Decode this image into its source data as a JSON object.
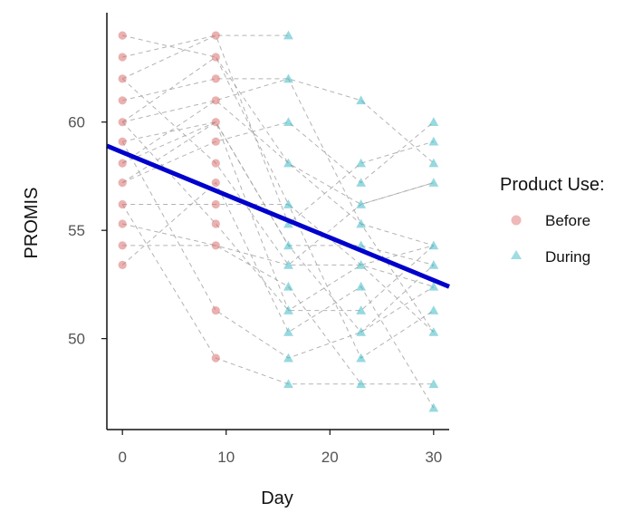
{
  "chart_data": {
    "type": "scatter",
    "title": "",
    "xlabel": "Day",
    "ylabel": "PROMIS",
    "xlim": [
      -1.5,
      31.5
    ],
    "ylim": [
      45.8,
      64.8
    ],
    "xticks": [
      0,
      10,
      20,
      30
    ],
    "yticks": [
      50,
      55,
      60
    ],
    "legend": {
      "title": "Product Use:",
      "position": "right",
      "entries": [
        {
          "label": "Before",
          "shape": "circle",
          "color": "#e48a8a"
        },
        {
          "label": "During",
          "shape": "triangle",
          "color": "#5ec7cf"
        }
      ]
    },
    "colors": {
      "before": "#d9716f",
      "during": "#3fbac4",
      "trend": "#0000cc",
      "connector": "#9a9a9a",
      "axis": "#111111"
    },
    "series": [
      {
        "name": "Before",
        "points": [
          {
            "x": 0,
            "y": 64.0
          },
          {
            "x": 0,
            "y": 63.0
          },
          {
            "x": 0,
            "y": 62.0
          },
          {
            "x": 0,
            "y": 61.0
          },
          {
            "x": 0,
            "y": 60.0
          },
          {
            "x": 0,
            "y": 59.1
          },
          {
            "x": 0,
            "y": 58.1
          },
          {
            "x": 0,
            "y": 57.2
          },
          {
            "x": 0,
            "y": 56.2
          },
          {
            "x": 0,
            "y": 55.3
          },
          {
            "x": 0,
            "y": 54.3
          },
          {
            "x": 0,
            "y": 53.4
          },
          {
            "x": 9,
            "y": 64.0
          },
          {
            "x": 9,
            "y": 63.0
          },
          {
            "x": 9,
            "y": 62.0
          },
          {
            "x": 9,
            "y": 61.0
          },
          {
            "x": 9,
            "y": 60.0
          },
          {
            "x": 9,
            "y": 59.1
          },
          {
            "x": 9,
            "y": 58.1
          },
          {
            "x": 9,
            "y": 57.2
          },
          {
            "x": 9,
            "y": 56.2
          },
          {
            "x": 9,
            "y": 55.3
          },
          {
            "x": 9,
            "y": 54.3
          },
          {
            "x": 9,
            "y": 51.3
          },
          {
            "x": 9,
            "y": 49.1
          }
        ]
      },
      {
        "name": "During",
        "points": [
          {
            "x": 16,
            "y": 64.0
          },
          {
            "x": 16,
            "y": 62.0
          },
          {
            "x": 16,
            "y": 60.0
          },
          {
            "x": 16,
            "y": 58.1
          },
          {
            "x": 16,
            "y": 56.2
          },
          {
            "x": 16,
            "y": 55.3
          },
          {
            "x": 16,
            "y": 54.3
          },
          {
            "x": 16,
            "y": 53.4
          },
          {
            "x": 16,
            "y": 52.4
          },
          {
            "x": 16,
            "y": 51.3
          },
          {
            "x": 16,
            "y": 50.3
          },
          {
            "x": 16,
            "y": 49.1
          },
          {
            "x": 16,
            "y": 47.9
          },
          {
            "x": 23,
            "y": 61.0
          },
          {
            "x": 23,
            "y": 58.1
          },
          {
            "x": 23,
            "y": 57.2
          },
          {
            "x": 23,
            "y": 56.2
          },
          {
            "x": 23,
            "y": 55.3
          },
          {
            "x": 23,
            "y": 54.3
          },
          {
            "x": 23,
            "y": 53.4
          },
          {
            "x": 23,
            "y": 52.4
          },
          {
            "x": 23,
            "y": 51.3
          },
          {
            "x": 23,
            "y": 50.3
          },
          {
            "x": 23,
            "y": 49.1
          },
          {
            "x": 23,
            "y": 47.9
          },
          {
            "x": 30,
            "y": 60.0
          },
          {
            "x": 30,
            "y": 59.1
          },
          {
            "x": 30,
            "y": 58.1
          },
          {
            "x": 30,
            "y": 57.2
          },
          {
            "x": 30,
            "y": 54.3
          },
          {
            "x": 30,
            "y": 53.4
          },
          {
            "x": 30,
            "y": 52.4
          },
          {
            "x": 30,
            "y": 51.3
          },
          {
            "x": 30,
            "y": 50.3
          },
          {
            "x": 30,
            "y": 47.9
          },
          {
            "x": 30,
            "y": 46.8
          }
        ]
      }
    ],
    "connectors": [
      [
        [
          0,
          64.0
        ],
        [
          9,
          63.0
        ],
        [
          16,
          56.2
        ],
        [
          23,
          53.4
        ],
        [
          30,
          50.3
        ]
      ],
      [
        [
          0,
          63.0
        ],
        [
          9,
          64.0
        ],
        [
          16,
          64.0
        ]
      ],
      [
        [
          0,
          62.0
        ],
        [
          9,
          64.0
        ],
        [
          16,
          55.3
        ],
        [
          23,
          58.1
        ],
        [
          30,
          59.1
        ]
      ],
      [
        [
          0,
          61.0
        ],
        [
          9,
          62.0
        ],
        [
          16,
          62.0
        ],
        [
          23,
          61.0
        ],
        [
          30,
          58.1
        ]
      ],
      [
        [
          0,
          60.0
        ],
        [
          9,
          61.0
        ],
        [
          16,
          58.1
        ],
        [
          23,
          56.2
        ],
        [
          30,
          57.2
        ]
      ],
      [
        [
          0,
          59.1
        ],
        [
          9,
          60.0
        ],
        [
          16,
          54.3
        ],
        [
          23,
          50.3
        ],
        [
          30,
          53.4
        ]
      ],
      [
        [
          0,
          58.1
        ],
        [
          9,
          61.0
        ],
        [
          16,
          62.0
        ],
        [
          23,
          55.3
        ],
        [
          30,
          54.3
        ]
      ],
      [
        [
          0,
          57.2
        ],
        [
          9,
          59.1
        ],
        [
          16,
          60.0
        ],
        [
          23,
          57.2
        ],
        [
          30,
          60.0
        ]
      ],
      [
        [
          0,
          56.2
        ],
        [
          9,
          56.2
        ],
        [
          16,
          56.2
        ],
        [
          23,
          49.1
        ],
        [
          30,
          51.3
        ]
      ],
      [
        [
          0,
          55.3
        ],
        [
          9,
          54.3
        ],
        [
          16,
          52.4
        ],
        [
          23,
          47.9
        ],
        [
          30,
          47.9
        ]
      ],
      [
        [
          0,
          54.3
        ],
        [
          9,
          54.3
        ],
        [
          16,
          53.4
        ],
        [
          23,
          53.4
        ],
        [
          30,
          52.4
        ]
      ],
      [
        [
          0,
          53.4
        ],
        [
          9,
          57.2
        ],
        [
          16,
          50.3
        ],
        [
          23,
          52.4
        ],
        [
          30,
          46.8
        ]
      ],
      [
        [
          0,
          60.0
        ],
        [
          9,
          55.3
        ],
        [
          16,
          51.3
        ],
        [
          23,
          51.3
        ],
        [
          30,
          54.3
        ]
      ],
      [
        [
          0,
          58.1
        ],
        [
          9,
          60.0
        ],
        [
          16,
          54.3
        ],
        [
          23,
          54.3
        ],
        [
          30,
          53.4
        ]
      ],
      [
        [
          0,
          59.1
        ],
        [
          9,
          51.3
        ],
        [
          16,
          49.1
        ],
        [
          23,
          50.3
        ],
        [
          30,
          52.4
        ]
      ],
      [
        [
          0,
          62.0
        ],
        [
          9,
          58.1
        ],
        [
          16,
          53.4
        ],
        [
          23,
          56.2
        ],
        [
          30,
          57.2
        ]
      ],
      [
        [
          0,
          56.2
        ],
        [
          9,
          49.1
        ],
        [
          16,
          47.9
        ],
        [
          23,
          47.9
        ]
      ],
      [
        [
          0,
          60.0
        ],
        [
          9,
          63.0
        ],
        [
          16,
          58.1
        ],
        [
          23,
          55.3
        ],
        [
          30,
          50.3
        ]
      ],
      [
        [
          0,
          57.2
        ],
        [
          9,
          60.0
        ],
        [
          16,
          51.3
        ],
        [
          23,
          53.4
        ],
        [
          30,
          54.3
        ]
      ]
    ],
    "trend_line": {
      "x": [
        -1.5,
        31.5
      ],
      "y": [
        58.9,
        52.4
      ]
    }
  }
}
